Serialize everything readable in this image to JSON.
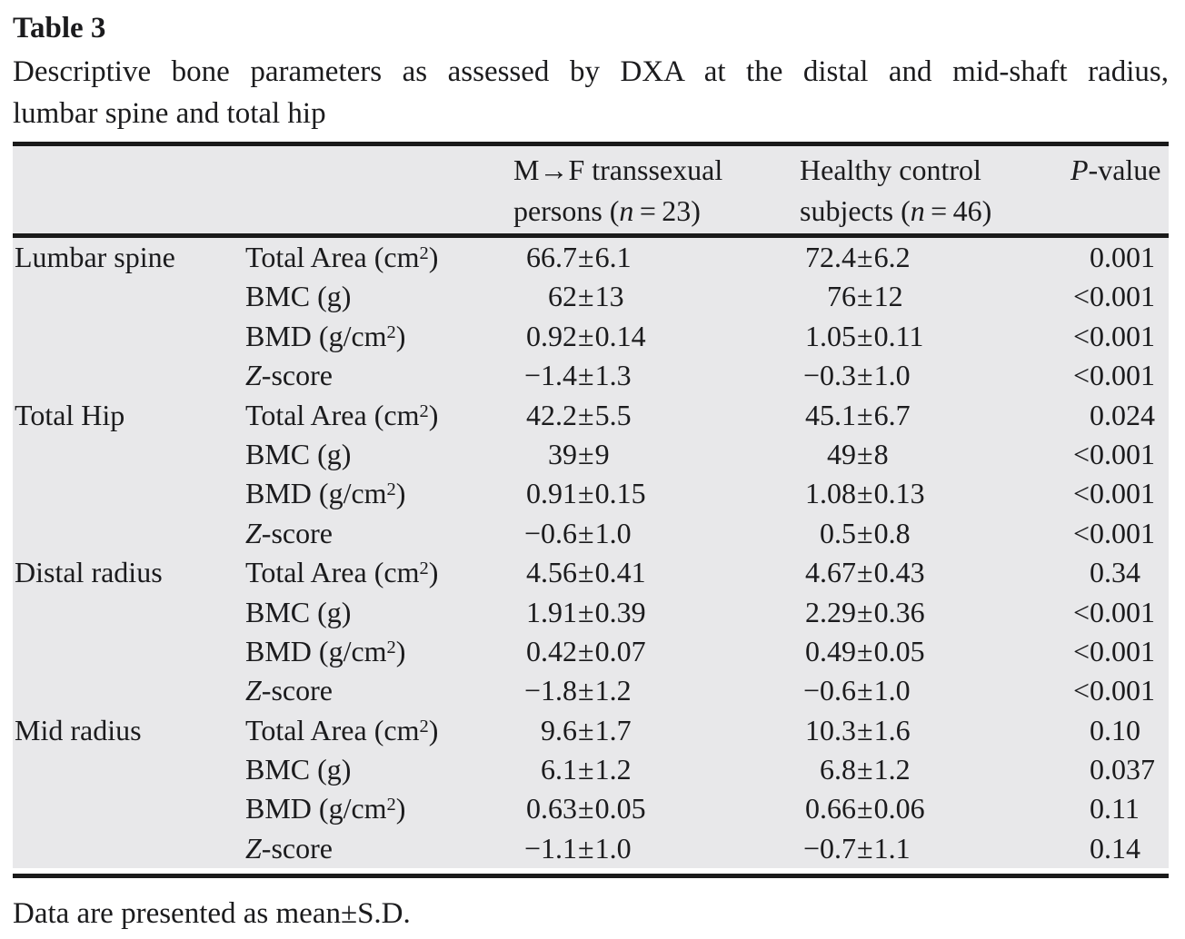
{
  "title": "Table 3",
  "caption_line1": "Descriptive bone parameters as assessed by DXA at the distal and mid-shaft radius,",
  "caption_line2": "lumbar spine and total hip",
  "table": {
    "header": {
      "site_col": "",
      "parameter_col": "",
      "mf_line1": "M→F transsexual",
      "mf_line2": "persons (*n* = 23)",
      "control_line1": "Healthy control",
      "control_line2": "subjects (*n* = 46)",
      "p_label": "*P*-value"
    },
    "groups": [
      {
        "site": "Lumbar spine",
        "rows": [
          {
            "parameter": "Total Area (cm^2)",
            "mf": "66.7±6.1",
            "control": "72.4±6.2",
            "p": "0.001"
          },
          {
            "parameter": "BMC (g)",
            "mf": "62±13",
            "control": "76±12",
            "p": "<0.001"
          },
          {
            "parameter": "BMD (g/cm^2)",
            "mf": "0.92±0.14",
            "control": "1.05±0.11",
            "p": "<0.001"
          },
          {
            "parameter": "*Z*-score",
            "mf": "−1.4±1.3",
            "control": "−0.3±1.0",
            "p": "<0.001"
          }
        ]
      },
      {
        "site": "Total Hip",
        "rows": [
          {
            "parameter": "Total Area (cm^2)",
            "mf": "42.2±5.5",
            "control": "45.1±6.7",
            "p": "0.024"
          },
          {
            "parameter": "BMC (g)",
            "mf": "39±9",
            "control": "49±8",
            "p": "<0.001"
          },
          {
            "parameter": "BMD (g/cm^2)",
            "mf": "0.91±0.15",
            "control": "1.08±0.13",
            "p": "<0.001"
          },
          {
            "parameter": "*Z*-score",
            "mf": "−0.6±1.0",
            "control": "0.5±0.8",
            "p": "<0.001"
          }
        ]
      },
      {
        "site": "Distal radius",
        "rows": [
          {
            "parameter": "Total Area (cm^2)",
            "mf": "4.56±0.41",
            "control": "4.67±0.43",
            "p": "0.34"
          },
          {
            "parameter": "BMC (g)",
            "mf": "1.91±0.39",
            "control": "2.29±0.36",
            "p": "<0.001"
          },
          {
            "parameter": "BMD (g/cm^2)",
            "mf": "0.42±0.07",
            "control": "0.49±0.05",
            "p": "<0.001"
          },
          {
            "parameter": "*Z*-score",
            "mf": "−1.8±1.2",
            "control": "−0.6±1.0",
            "p": "<0.001"
          }
        ]
      },
      {
        "site": "Mid radius",
        "rows": [
          {
            "parameter": "Total Area (cm^2)",
            "mf": "9.6±1.7",
            "control": "10.3±1.6",
            "p": "0.10"
          },
          {
            "parameter": "BMC (g)",
            "mf": "6.1±1.2",
            "control": "6.8±1.2",
            "p": "0.037"
          },
          {
            "parameter": "BMD (g/cm^2)",
            "mf": "0.63±0.05",
            "control": "0.66±0.06",
            "p": "0.11"
          },
          {
            "parameter": "*Z*-score",
            "mf": "−1.1±1.0",
            "control": "−0.7±1.1",
            "p": "0.14"
          }
        ]
      }
    ]
  },
  "footnote": "Data are presented as mean±S.D."
}
